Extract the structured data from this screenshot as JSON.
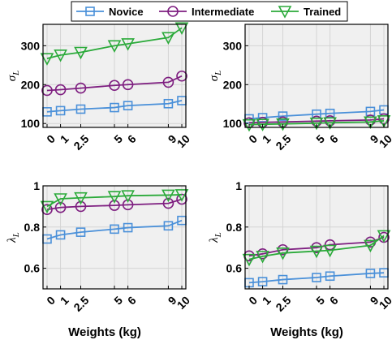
{
  "legend": {
    "items": [
      {
        "label": "Novice",
        "color": "#4A90D9",
        "marker": "square"
      },
      {
        "label": "Intermediate",
        "color": "#7E1E80",
        "marker": "circle"
      },
      {
        "label": "Trained",
        "color": "#2BAA3A",
        "marker": "triangle-down"
      }
    ]
  },
  "chart_data": [
    {
      "type": "line",
      "ylabel": "σ_L",
      "ylabel_base": "σ",
      "ylabel_sub": "L",
      "xlabel": "",
      "x": [
        0,
        1,
        2.5,
        5,
        6,
        9,
        10
      ],
      "xtick_labels": [
        "0",
        "1",
        "2.5",
        "5",
        "6",
        "9",
        "10"
      ],
      "ylim": [
        90,
        355
      ],
      "yticks": [
        100,
        200,
        300
      ],
      "grid": true,
      "series": [
        {
          "name": "Novice",
          "values": [
            130,
            133,
            137,
            141,
            146,
            151,
            159
          ]
        },
        {
          "name": "Intermediate",
          "values": [
            185,
            187,
            191,
            198,
            200,
            206,
            222
          ]
        },
        {
          "name": "Trained",
          "values": [
            267,
            276,
            283,
            300,
            305,
            321,
            346
          ]
        }
      ]
    },
    {
      "type": "line",
      "ylabel": "σ_L",
      "ylabel_base": "σ",
      "ylabel_sub": "L",
      "xlabel": "",
      "x": [
        0,
        1,
        2.5,
        5,
        6,
        9,
        10
      ],
      "xtick_labels": [
        "0",
        "1",
        "2.5",
        "5",
        "6",
        "9",
        "10"
      ],
      "ylim": [
        90,
        355
      ],
      "yticks": [
        100,
        200,
        300
      ],
      "grid": true,
      "series": [
        {
          "name": "Novice",
          "values": [
            112,
            115,
            119,
            124,
            126,
            131,
            135
          ]
        },
        {
          "name": "Intermediate",
          "values": [
            102,
            103,
            104,
            106,
            107,
            109,
            112
          ]
        },
        {
          "name": "Trained",
          "values": [
            97,
            98,
            99,
            101,
            102,
            104,
            107
          ]
        }
      ]
    },
    {
      "type": "line",
      "ylabel": "λ_L",
      "ylabel_base": "λ",
      "ylabel_sub": "L",
      "xlabel": "Weights (kg)",
      "x": [
        0,
        1,
        2.5,
        5,
        6,
        9,
        10
      ],
      "xtick_labels": [
        "0",
        "1",
        "2.5",
        "5",
        "6",
        "9",
        "10"
      ],
      "ylim": [
        0.5,
        1.0
      ],
      "yticks": [
        0.6,
        0.8,
        1
      ],
      "ytick_labels": [
        "0.6",
        "0.8",
        "1"
      ],
      "grid": true,
      "series": [
        {
          "name": "Novice",
          "values": [
            0.742,
            0.762,
            0.775,
            0.79,
            0.797,
            0.806,
            0.832
          ]
        },
        {
          "name": "Intermediate",
          "values": [
            0.885,
            0.895,
            0.9,
            0.905,
            0.908,
            0.915,
            0.935
          ]
        },
        {
          "name": "Trained",
          "values": [
            0.9,
            0.937,
            0.942,
            0.948,
            0.952,
            0.955,
            0.957
          ]
        }
      ]
    },
    {
      "type": "line",
      "ylabel": "λ_L",
      "ylabel_base": "λ",
      "ylabel_sub": "L",
      "xlabel": "Weights (kg)",
      "x": [
        0,
        1,
        2.5,
        5,
        6,
        9,
        10
      ],
      "xtick_labels": [
        "0",
        "1",
        "2.5",
        "5",
        "6",
        "9",
        "10"
      ],
      "ylim": [
        0.5,
        1.0
      ],
      "yticks": [
        0.6,
        0.8,
        1
      ],
      "ytick_labels": [
        "0.6",
        "0.8",
        "1"
      ],
      "grid": true,
      "series": [
        {
          "name": "Novice",
          "values": [
            0.53,
            0.535,
            0.545,
            0.555,
            0.562,
            0.575,
            0.578
          ]
        },
        {
          "name": "Intermediate",
          "values": [
            0.66,
            0.67,
            0.69,
            0.7,
            0.714,
            0.727,
            0.75
          ]
        },
        {
          "name": "Trained",
          "values": [
            0.643,
            0.658,
            0.674,
            0.683,
            0.687,
            0.711,
            0.758
          ]
        }
      ]
    }
  ]
}
